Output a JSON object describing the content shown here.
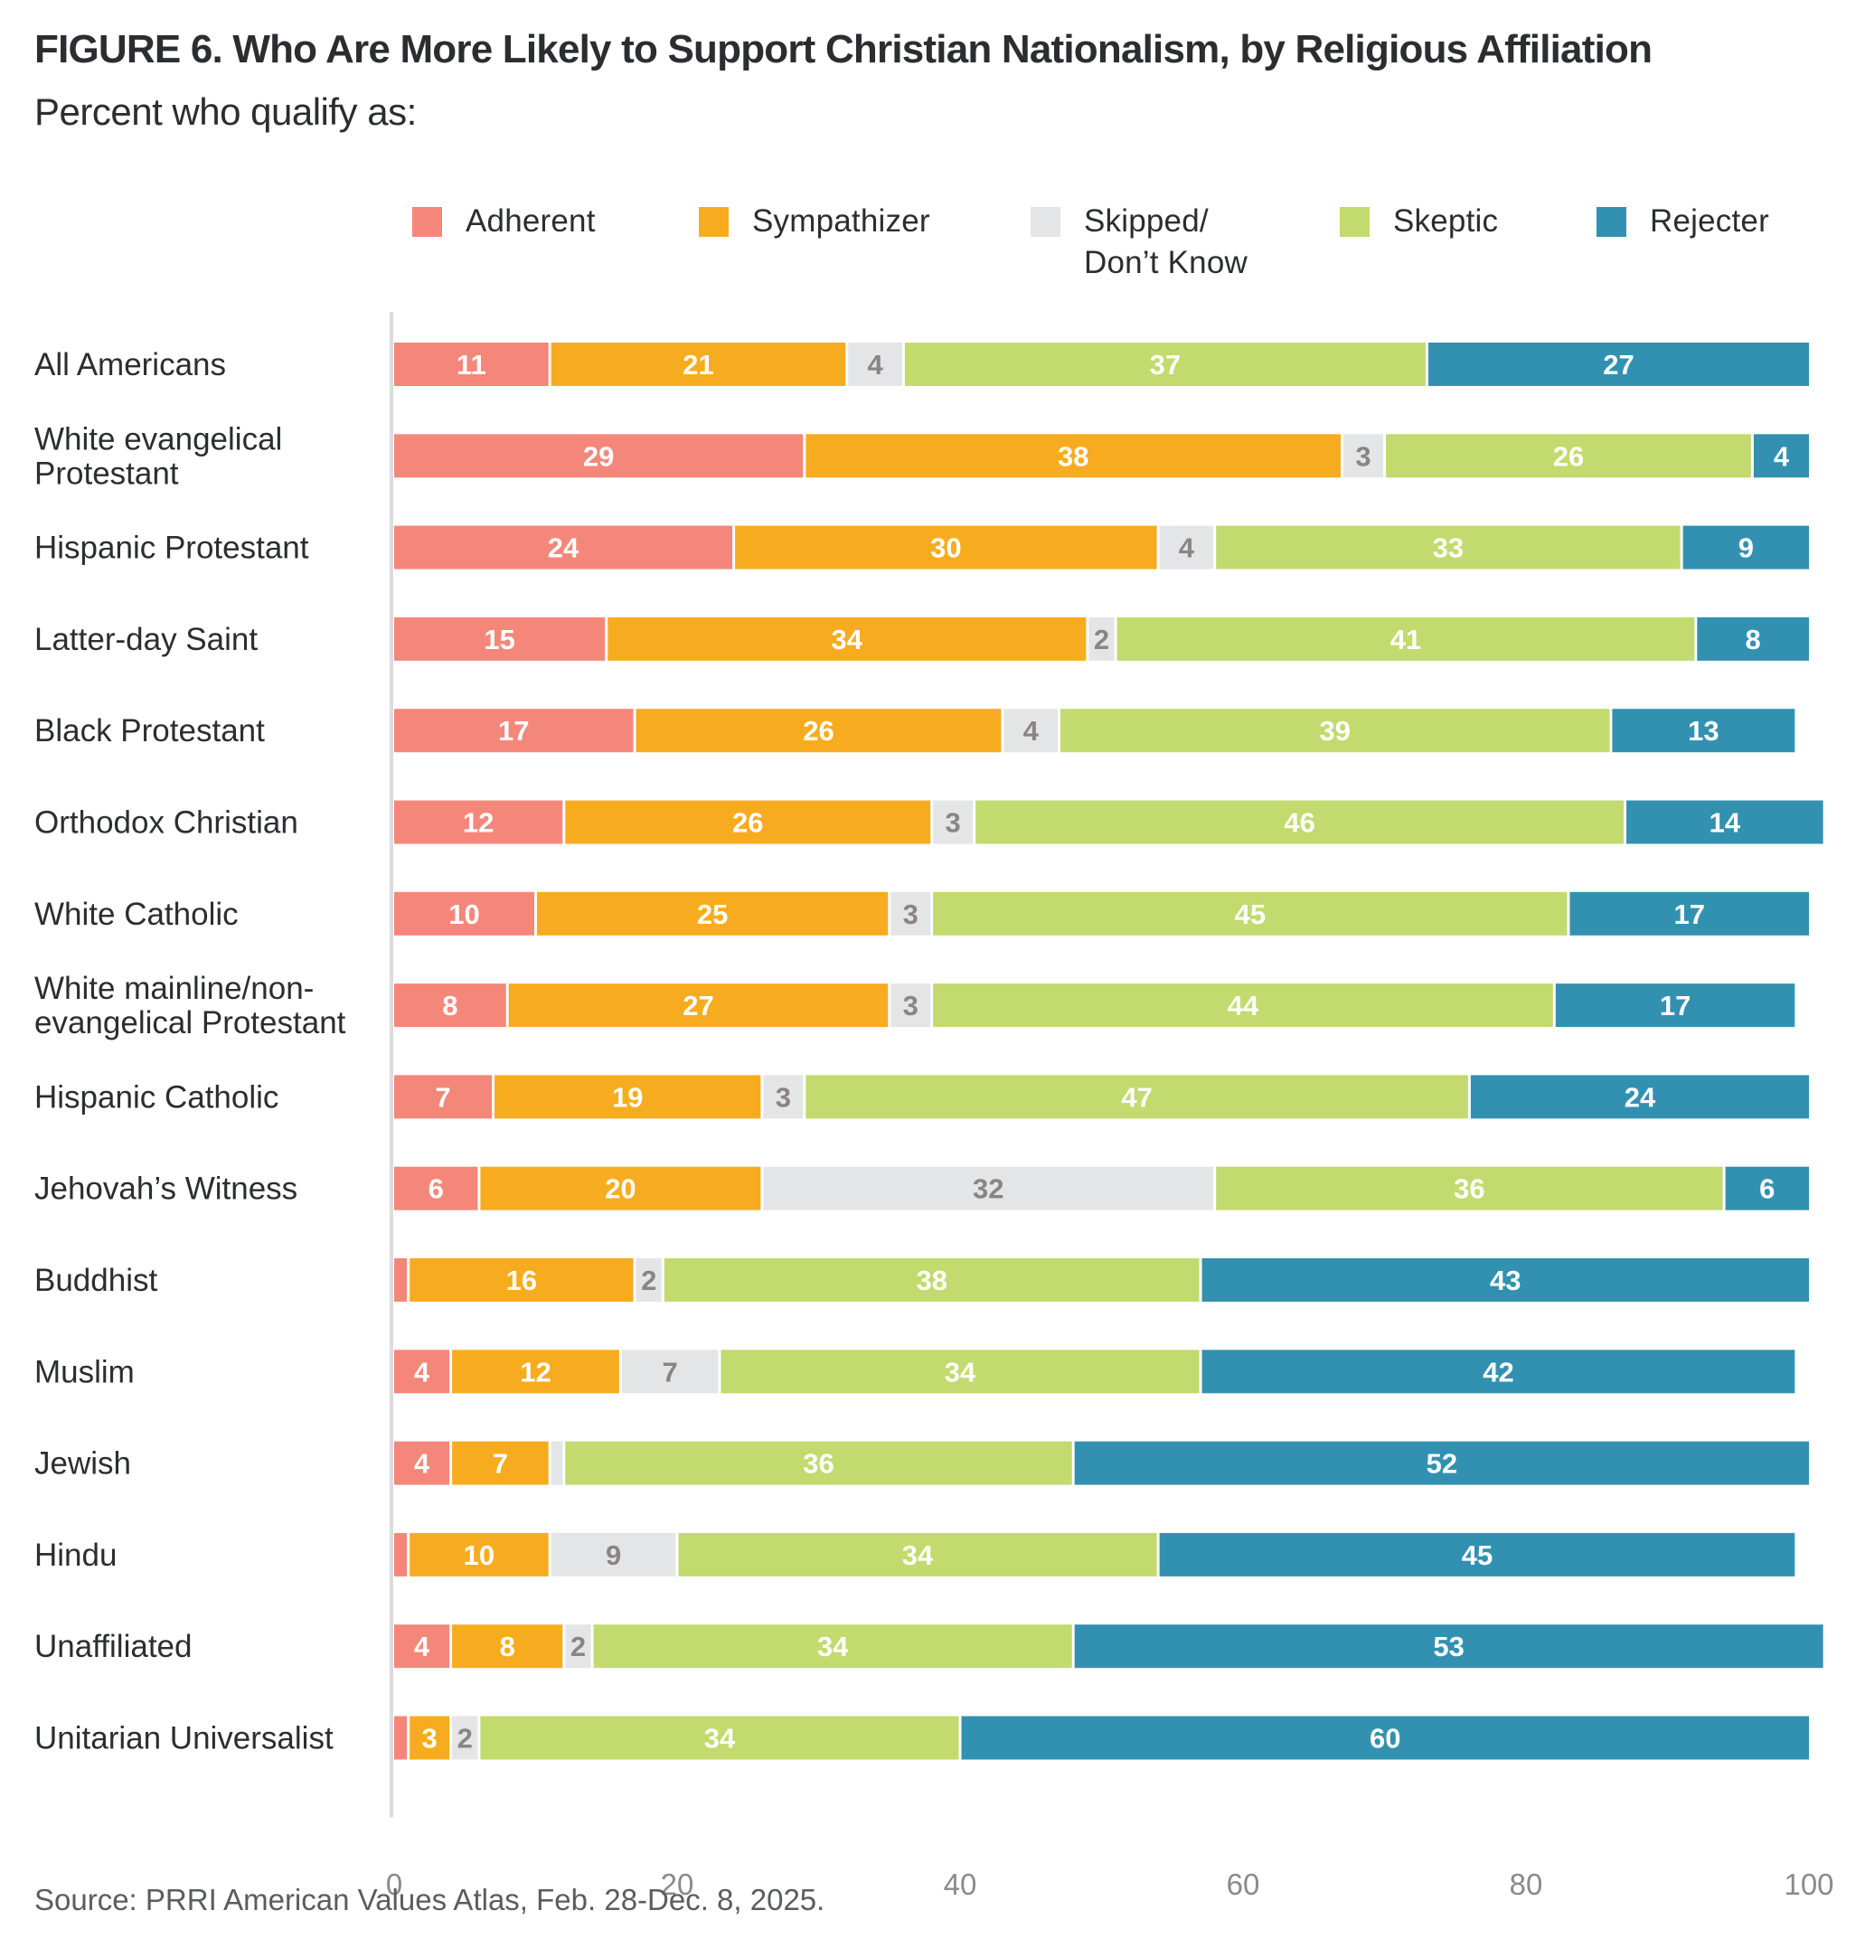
{
  "header": {
    "title": "FIGURE 6.  Who Are More Likely to Support Christian Nationalism, by Religious Affiliation",
    "subtitle": "Percent who qualify as:"
  },
  "footer": {
    "source": "Source: PRRI American Values Atlas, Feb. 28-Dec. 8, 2025."
  },
  "legend": [
    {
      "label": "Adherent",
      "color": "#F4877A"
    },
    {
      "label": "Sympathizer",
      "color": "#F7AC1F"
    },
    {
      "label": "Skipped/\nDon’t Know",
      "color": "#E4E5E7"
    },
    {
      "label": "Skeptic",
      "color": "#C2DA6E"
    },
    {
      "label": "Rejecter",
      "color": "#3291B0"
    }
  ],
  "chart_data": {
    "type": "bar",
    "orientation": "horizontal",
    "stacked": true,
    "title": "FIGURE 6.  Who Are More Likely to Support Christian Nationalism, by Religious Affiliation",
    "subtitle": "Percent who qualify as:",
    "xlabel": "",
    "ylabel": "",
    "xlim": [
      0,
      100
    ],
    "xticks": [
      0,
      20,
      40,
      60,
      80,
      100
    ],
    "grid": false,
    "legend_position": "top",
    "categories": [
      "All Americans",
      "White evangelical\nProtestant",
      "Hispanic Protestant",
      "Latter-day Saint",
      "Black Protestant",
      "Orthodox Christian",
      "White Catholic",
      "White mainline/non-\nevangelical Protestant",
      "Hispanic Catholic",
      "Jehovah’s Witness",
      "Buddhist",
      "Muslim",
      "Jewish",
      "Hindu",
      "Unaffiliated",
      "Unitarian Universalist"
    ],
    "series": [
      {
        "name": "Adherent",
        "color": "#F4877A",
        "label_color": "#FFFFFF",
        "values": [
          11,
          29,
          24,
          15,
          17,
          12,
          10,
          8,
          7,
          6,
          1,
          4,
          4,
          1,
          4,
          1
        ],
        "labels": [
          "11",
          "29",
          "24",
          "15",
          "17",
          "12",
          "10",
          "8",
          "7",
          "6",
          "",
          "4",
          "4",
          "",
          "4",
          ""
        ]
      },
      {
        "name": "Sympathizer",
        "color": "#F7AC1F",
        "label_color": "#FFFFFF",
        "values": [
          21,
          38,
          30,
          34,
          26,
          26,
          25,
          27,
          19,
          20,
          16,
          12,
          7,
          10,
          8,
          3
        ],
        "labels": [
          "21",
          "38",
          "30",
          "34",
          "26",
          "26",
          "25",
          "27",
          "19",
          "20",
          "16",
          "12",
          "7",
          "10",
          "8",
          "3"
        ]
      },
      {
        "name": "Skipped/Don’t Know",
        "color": "#E4E5E7",
        "label_color": "#8A8582",
        "values": [
          4,
          3,
          4,
          2,
          4,
          3,
          3,
          3,
          3,
          32,
          2,
          7,
          1,
          9,
          2,
          2
        ],
        "labels": [
          "4",
          "3",
          "4",
          "2",
          "4",
          "3",
          "3",
          "3",
          "3",
          "32",
          "2",
          "7",
          "",
          "9",
          "2",
          "2"
        ]
      },
      {
        "name": "Skeptic",
        "color": "#C2DA6E",
        "label_color": "#FFFFFF",
        "values": [
          37,
          26,
          33,
          41,
          39,
          46,
          45,
          44,
          47,
          36,
          38,
          34,
          36,
          34,
          34,
          34
        ],
        "labels": [
          "37",
          "26",
          "33",
          "41",
          "39",
          "46",
          "45",
          "44",
          "47",
          "36",
          "38",
          "34",
          "36",
          "34",
          "34",
          "34"
        ]
      },
      {
        "name": "Rejecter",
        "color": "#3291B0",
        "label_color": "#FFFFFF",
        "values": [
          27,
          4,
          9,
          8,
          13,
          14,
          17,
          17,
          24,
          6,
          43,
          42,
          52,
          45,
          53,
          60
        ],
        "labels": [
          "27",
          "4",
          "9",
          "8",
          "13",
          "14",
          "17",
          "17",
          "24",
          "6",
          "43",
          "42",
          "52",
          "45",
          "53",
          "60"
        ]
      }
    ]
  }
}
